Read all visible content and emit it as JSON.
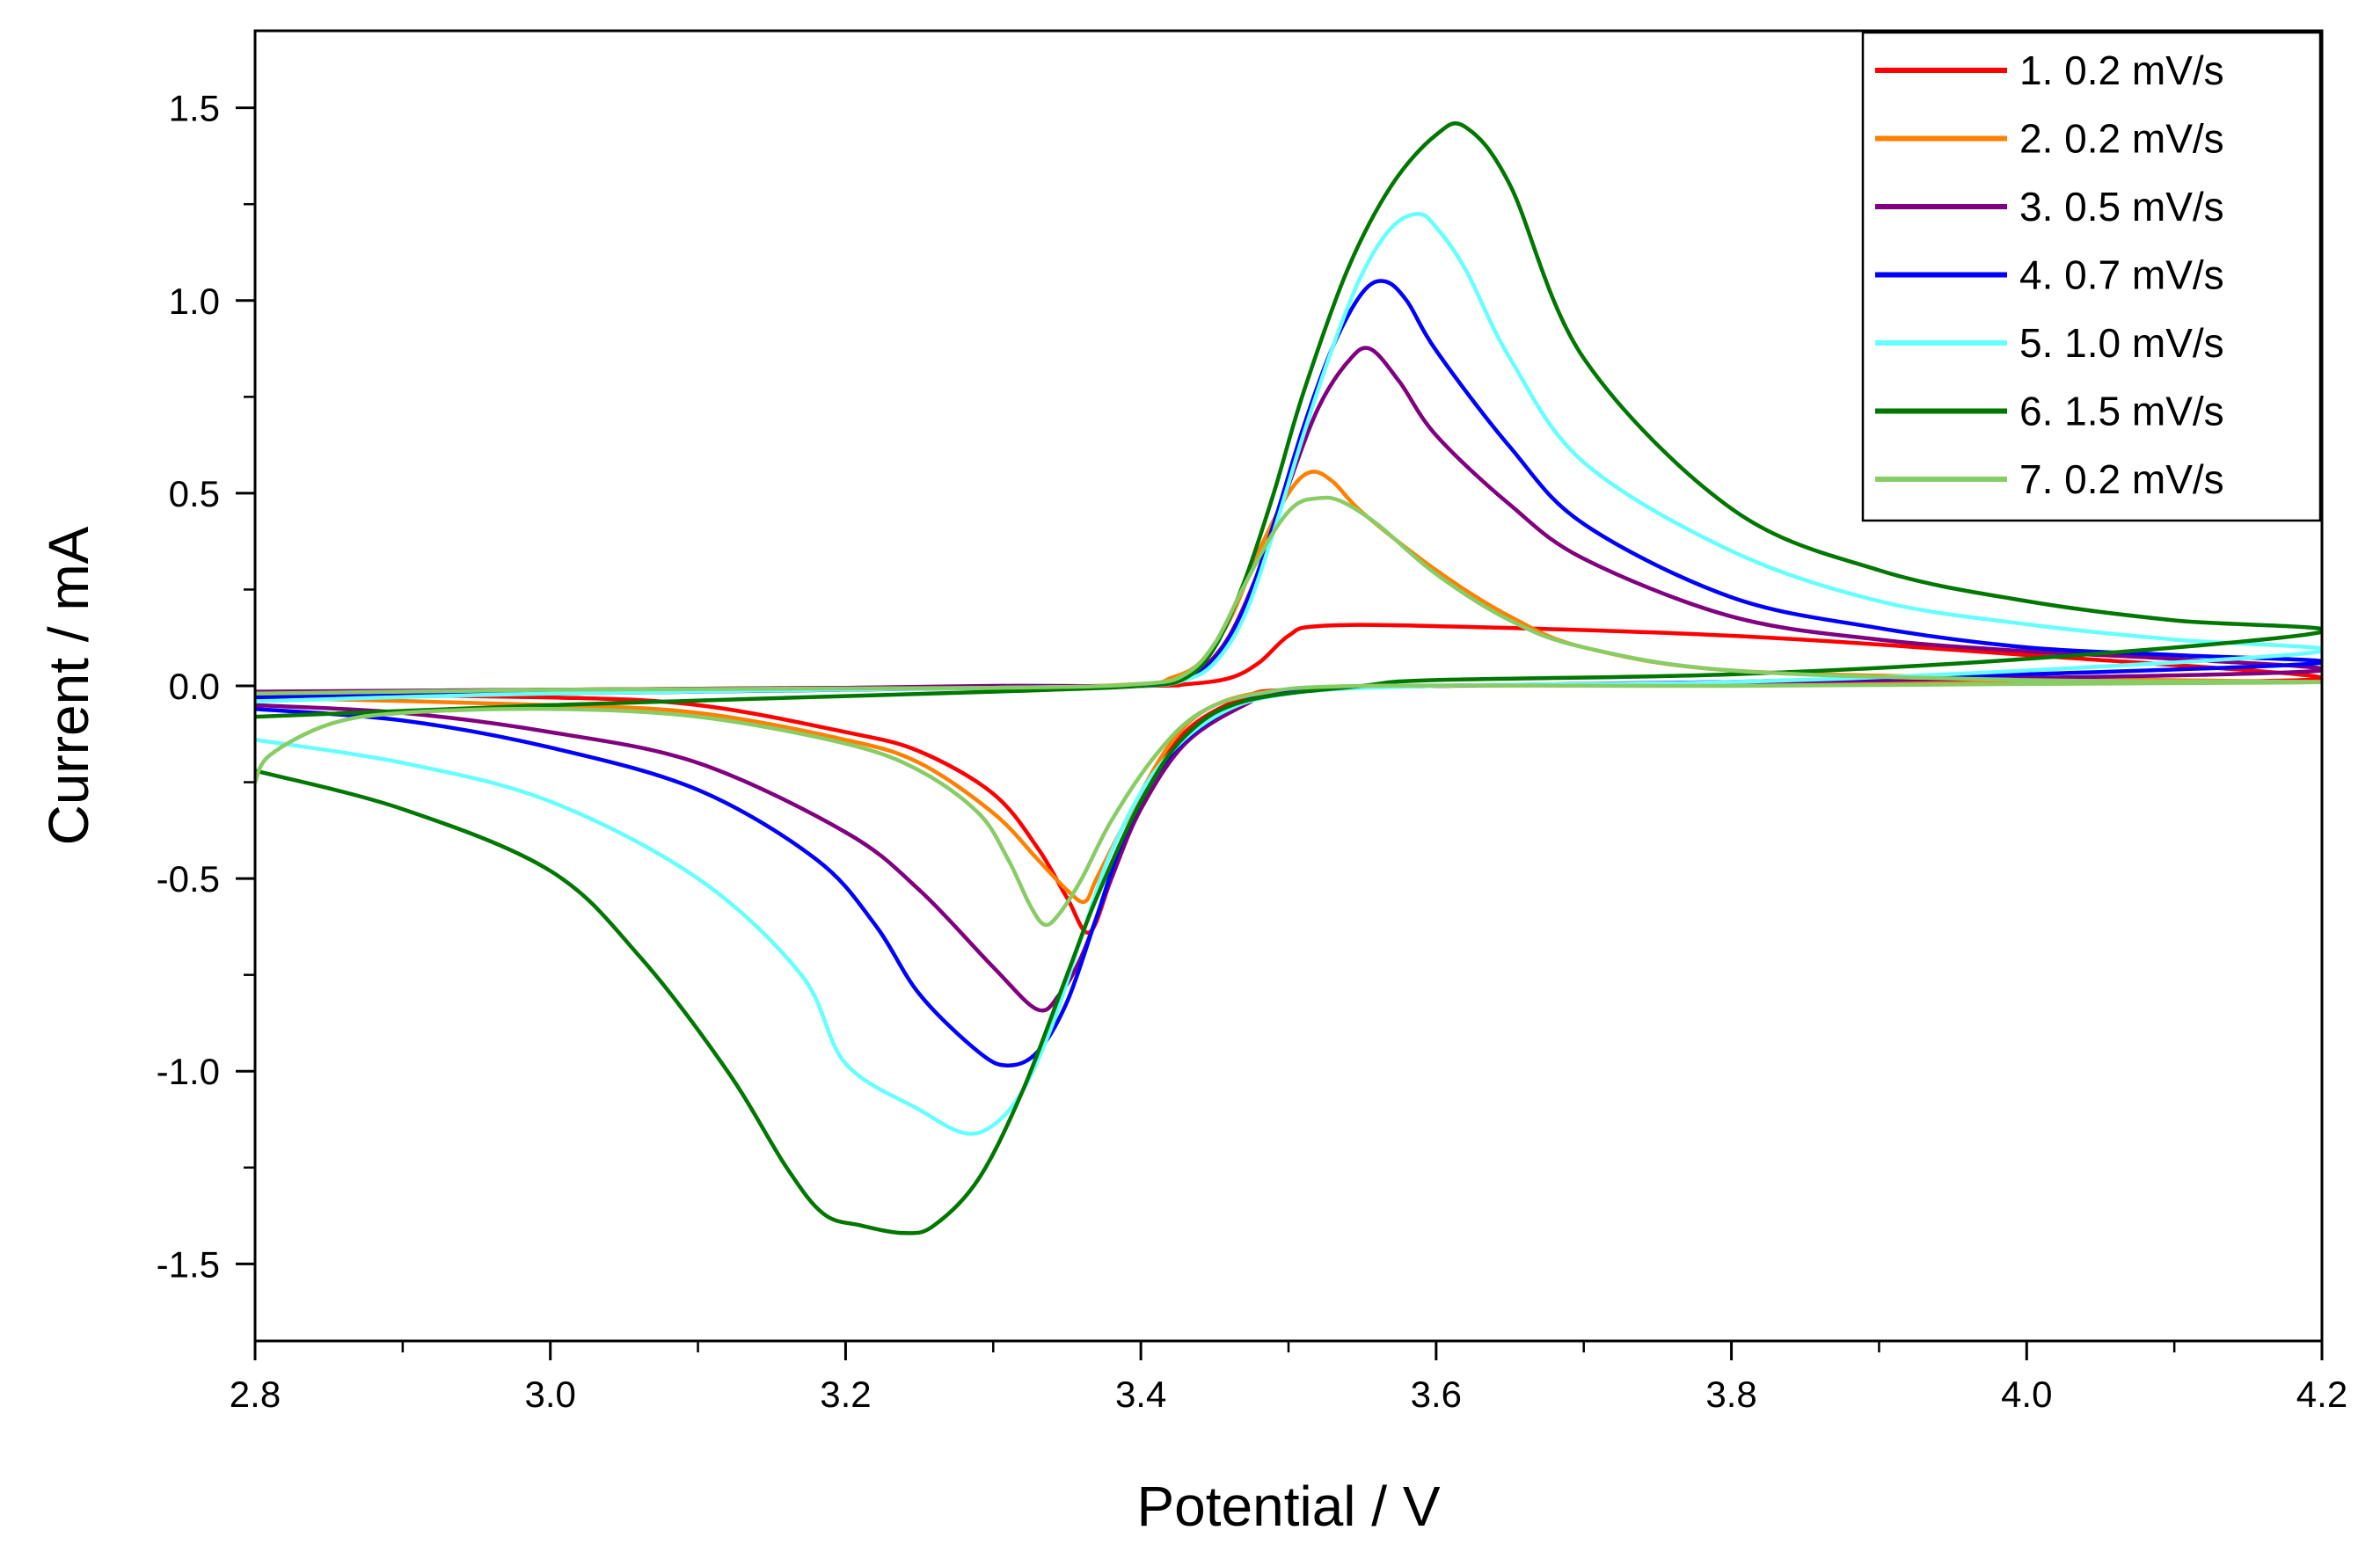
{
  "chart_data": {
    "type": "line",
    "title": "",
    "xlabel": "Potential / V",
    "ylabel": "Current / mA",
    "xlim": [
      2.8,
      4.2
    ],
    "ylim": [
      -1.7,
      1.7
    ],
    "xticks": [
      2.8,
      3.0,
      3.2,
      3.4,
      3.6,
      3.8,
      4.0,
      4.2
    ],
    "xtick_labels": [
      "2.8",
      "3.0",
      "3.2",
      "3.4",
      "3.6",
      "3.8",
      "4.0",
      "4.2"
    ],
    "yticks": [
      -1.5,
      -1.0,
      -0.5,
      0.0,
      0.5,
      1.0,
      1.5
    ],
    "ytick_labels": [
      "-1.5",
      "-1.0",
      "-0.5",
      "0.0",
      "0.5",
      "1.0",
      "1.5"
    ],
    "grid": false,
    "legend_position": "top-right",
    "series": [
      {
        "name": "1. 0.2 mV/s",
        "color": "#ff0000",
        "points": [
          [
            2.8,
            -0.02
          ],
          [
            3.0,
            -0.03
          ],
          [
            3.1,
            -0.05
          ],
          [
            3.2,
            -0.12
          ],
          [
            3.25,
            -0.17
          ],
          [
            3.3,
            -0.28
          ],
          [
            3.33,
            -0.42
          ],
          [
            3.35,
            -0.55
          ],
          [
            3.365,
            -0.64
          ],
          [
            3.38,
            -0.5
          ],
          [
            3.4,
            -0.3
          ],
          [
            3.43,
            -0.12
          ],
          [
            3.47,
            -0.03
          ],
          [
            3.5,
            -0.01
          ],
          [
            3.6,
            0.0
          ],
          [
            3.8,
            0.005
          ],
          [
            4.0,
            0.01
          ],
          [
            4.2,
            0.02
          ],
          [
            4.0,
            0.08
          ],
          [
            3.8,
            0.13
          ],
          [
            3.6,
            0.155
          ],
          [
            3.52,
            0.155
          ],
          [
            3.5,
            0.13
          ],
          [
            3.48,
            0.06
          ],
          [
            3.46,
            0.02
          ],
          [
            3.43,
            0.004
          ],
          [
            3.4,
            0.0
          ],
          [
            3.2,
            -0.005
          ],
          [
            3.0,
            -0.01
          ],
          [
            2.8,
            -0.02
          ]
        ]
      },
      {
        "name": "2. 0.2 mV/s",
        "color": "#ff8000",
        "points": [
          [
            2.8,
            -0.03
          ],
          [
            3.0,
            -0.05
          ],
          [
            3.1,
            -0.07
          ],
          [
            3.2,
            -0.14
          ],
          [
            3.25,
            -0.2
          ],
          [
            3.3,
            -0.33
          ],
          [
            3.33,
            -0.45
          ],
          [
            3.35,
            -0.53
          ],
          [
            3.362,
            -0.56
          ],
          [
            3.37,
            -0.5
          ],
          [
            3.39,
            -0.35
          ],
          [
            3.42,
            -0.15
          ],
          [
            3.45,
            -0.05
          ],
          [
            3.5,
            -0.01
          ],
          [
            3.6,
            0.0
          ],
          [
            3.8,
            0.005
          ],
          [
            4.0,
            0.01
          ],
          [
            4.2,
            0.01
          ],
          [
            4.0,
            0.02
          ],
          [
            3.8,
            0.04
          ],
          [
            3.7,
            0.1
          ],
          [
            3.65,
            0.18
          ],
          [
            3.6,
            0.3
          ],
          [
            3.55,
            0.45
          ],
          [
            3.53,
            0.53
          ],
          [
            3.515,
            0.555
          ],
          [
            3.5,
            0.5
          ],
          [
            3.48,
            0.35
          ],
          [
            3.46,
            0.17
          ],
          [
            3.44,
            0.06
          ],
          [
            3.42,
            0.02
          ],
          [
            3.4,
            0.005
          ],
          [
            3.3,
            -0.005
          ],
          [
            3.0,
            -0.015
          ],
          [
            2.8,
            -0.03
          ]
        ]
      },
      {
        "name": "3. 0.5 mV/s",
        "color": "#800080",
        "points": [
          [
            2.8,
            -0.05
          ],
          [
            2.9,
            -0.07
          ],
          [
            3.0,
            -0.12
          ],
          [
            3.1,
            -0.2
          ],
          [
            3.2,
            -0.38
          ],
          [
            3.25,
            -0.53
          ],
          [
            3.3,
            -0.73
          ],
          [
            3.33,
            -0.84
          ],
          [
            3.345,
            -0.8
          ],
          [
            3.36,
            -0.7
          ],
          [
            3.38,
            -0.5
          ],
          [
            3.4,
            -0.32
          ],
          [
            3.43,
            -0.15
          ],
          [
            3.47,
            -0.05
          ],
          [
            3.5,
            -0.015
          ],
          [
            3.6,
            0.0
          ],
          [
            3.8,
            0.01
          ],
          [
            4.0,
            0.02
          ],
          [
            4.2,
            0.04
          ],
          [
            4.1,
            0.07
          ],
          [
            4.0,
            0.09
          ],
          [
            3.9,
            0.12
          ],
          [
            3.8,
            0.18
          ],
          [
            3.7,
            0.33
          ],
          [
            3.65,
            0.47
          ],
          [
            3.6,
            0.65
          ],
          [
            3.575,
            0.79
          ],
          [
            3.555,
            0.875
          ],
          [
            3.54,
            0.84
          ],
          [
            3.52,
            0.72
          ],
          [
            3.5,
            0.52
          ],
          [
            3.48,
            0.3
          ],
          [
            3.46,
            0.13
          ],
          [
            3.44,
            0.04
          ],
          [
            3.42,
            0.01
          ],
          [
            3.4,
            0.0
          ],
          [
            3.3,
            0.0
          ],
          [
            3.2,
            -0.005
          ],
          [
            3.0,
            -0.01
          ],
          [
            2.8,
            -0.015
          ]
        ]
      },
      {
        "name": "4. 0.7 mV/s",
        "color": "#0000ff",
        "points": [
          [
            2.8,
            -0.06
          ],
          [
            2.9,
            -0.09
          ],
          [
            3.0,
            -0.16
          ],
          [
            3.1,
            -0.27
          ],
          [
            3.18,
            -0.45
          ],
          [
            3.22,
            -0.62
          ],
          [
            3.25,
            -0.8
          ],
          [
            3.29,
            -0.95
          ],
          [
            3.31,
            -0.985
          ],
          [
            3.33,
            -0.95
          ],
          [
            3.35,
            -0.82
          ],
          [
            3.37,
            -0.6
          ],
          [
            3.39,
            -0.38
          ],
          [
            3.42,
            -0.18
          ],
          [
            3.46,
            -0.06
          ],
          [
            3.5,
            -0.015
          ],
          [
            3.6,
            0.0
          ],
          [
            3.8,
            0.01
          ],
          [
            4.0,
            0.03
          ],
          [
            4.2,
            0.06
          ],
          [
            4.1,
            0.08
          ],
          [
            4.0,
            0.1
          ],
          [
            3.9,
            0.15
          ],
          [
            3.8,
            0.23
          ],
          [
            3.7,
            0.42
          ],
          [
            3.65,
            0.62
          ],
          [
            3.6,
            0.87
          ],
          [
            3.58,
            1.0
          ],
          [
            3.565,
            1.05
          ],
          [
            3.55,
            1.02
          ],
          [
            3.53,
            0.88
          ],
          [
            3.51,
            0.67
          ],
          [
            3.49,
            0.42
          ],
          [
            3.47,
            0.2
          ],
          [
            3.45,
            0.07
          ],
          [
            3.43,
            0.02
          ],
          [
            3.4,
            0.0
          ],
          [
            3.3,
            -0.005
          ],
          [
            3.0,
            -0.02
          ],
          [
            2.8,
            -0.03
          ]
        ]
      },
      {
        "name": "5. 1.0 mV/s",
        "color": "#66ffff",
        "points": [
          [
            2.8,
            -0.14
          ],
          [
            2.9,
            -0.2
          ],
          [
            3.0,
            -0.3
          ],
          [
            3.1,
            -0.5
          ],
          [
            3.17,
            -0.75
          ],
          [
            3.2,
            -0.98
          ],
          [
            3.25,
            -1.1
          ],
          [
            3.28,
            -1.16
          ],
          [
            3.3,
            -1.14
          ],
          [
            3.32,
            -1.05
          ],
          [
            3.34,
            -0.88
          ],
          [
            3.36,
            -0.65
          ],
          [
            3.38,
            -0.43
          ],
          [
            3.41,
            -0.22
          ],
          [
            3.45,
            -0.08
          ],
          [
            3.5,
            -0.02
          ],
          [
            3.6,
            0.0
          ],
          [
            3.8,
            0.01
          ],
          [
            4.0,
            0.04
          ],
          [
            4.2,
            0.09
          ],
          [
            4.1,
            0.12
          ],
          [
            4.0,
            0.16
          ],
          [
            3.9,
            0.22
          ],
          [
            3.8,
            0.35
          ],
          [
            3.7,
            0.58
          ],
          [
            3.65,
            0.85
          ],
          [
            3.62,
            1.08
          ],
          [
            3.6,
            1.19
          ],
          [
            3.588,
            1.225
          ],
          [
            3.57,
            1.19
          ],
          [
            3.55,
            1.07
          ],
          [
            3.53,
            0.88
          ],
          [
            3.51,
            0.65
          ],
          [
            3.49,
            0.4
          ],
          [
            3.47,
            0.18
          ],
          [
            3.45,
            0.06
          ],
          [
            3.43,
            0.015
          ],
          [
            3.4,
            0.0
          ],
          [
            3.3,
            -0.005
          ],
          [
            3.0,
            -0.02
          ],
          [
            2.8,
            -0.04
          ]
        ]
      },
      {
        "name": "6. 1.5 mV/s",
        "color": "#007700",
        "points": [
          [
            2.8,
            -0.22
          ],
          [
            2.9,
            -0.32
          ],
          [
            3.0,
            -0.48
          ],
          [
            3.06,
            -0.7
          ],
          [
            3.12,
            -1.0
          ],
          [
            3.16,
            -1.25
          ],
          [
            3.185,
            -1.37
          ],
          [
            3.21,
            -1.4
          ],
          [
            3.24,
            -1.42
          ],
          [
            3.26,
            -1.4
          ],
          [
            3.29,
            -1.28
          ],
          [
            3.32,
            -1.05
          ],
          [
            3.35,
            -0.75
          ],
          [
            3.37,
            -0.55
          ],
          [
            3.4,
            -0.3
          ],
          [
            3.43,
            -0.13
          ],
          [
            3.47,
            -0.04
          ],
          [
            3.55,
            0.0
          ],
          [
            3.6,
            0.015
          ],
          [
            3.8,
            0.03
          ],
          [
            4.0,
            0.07
          ],
          [
            4.2,
            0.14
          ],
          [
            4.1,
            0.17
          ],
          [
            4.0,
            0.22
          ],
          [
            3.9,
            0.3
          ],
          [
            3.8,
            0.46
          ],
          [
            3.7,
            0.85
          ],
          [
            3.65,
            1.3
          ],
          [
            3.62,
            1.45
          ],
          [
            3.6,
            1.43
          ],
          [
            3.57,
            1.3
          ],
          [
            3.54,
            1.08
          ],
          [
            3.51,
            0.76
          ],
          [
            3.49,
            0.5
          ],
          [
            3.47,
            0.27
          ],
          [
            3.45,
            0.1
          ],
          [
            3.43,
            0.02
          ],
          [
            3.4,
            0.0
          ],
          [
            3.3,
            -0.015
          ],
          [
            3.0,
            -0.05
          ],
          [
            2.8,
            -0.08
          ]
        ]
      },
      {
        "name": "7. 0.2 mV/s",
        "color": "#88cc66",
        "points": [
          [
            2.8,
            -0.25
          ],
          [
            2.81,
            -0.18
          ],
          [
            2.85,
            -0.1
          ],
          [
            2.9,
            -0.07
          ],
          [
            3.0,
            -0.06
          ],
          [
            3.1,
            -0.08
          ],
          [
            3.2,
            -0.15
          ],
          [
            3.25,
            -0.22
          ],
          [
            3.29,
            -0.33
          ],
          [
            3.31,
            -0.45
          ],
          [
            3.325,
            -0.57
          ],
          [
            3.335,
            -0.62
          ],
          [
            3.345,
            -0.59
          ],
          [
            3.36,
            -0.5
          ],
          [
            3.38,
            -0.35
          ],
          [
            3.41,
            -0.18
          ],
          [
            3.44,
            -0.07
          ],
          [
            3.48,
            -0.02
          ],
          [
            3.55,
            0.0
          ],
          [
            3.8,
            0.0
          ],
          [
            4.0,
            0.005
          ],
          [
            4.2,
            0.01
          ],
          [
            4.0,
            0.015
          ],
          [
            3.8,
            0.04
          ],
          [
            3.7,
            0.1
          ],
          [
            3.65,
            0.17
          ],
          [
            3.6,
            0.29
          ],
          [
            3.56,
            0.42
          ],
          [
            3.535,
            0.48
          ],
          [
            3.52,
            0.487
          ],
          [
            3.505,
            0.47
          ],
          [
            3.49,
            0.4
          ],
          [
            3.47,
            0.26
          ],
          [
            3.45,
            0.11
          ],
          [
            3.43,
            0.03
          ],
          [
            3.4,
            0.005
          ],
          [
            3.3,
            -0.005
          ],
          [
            3.0,
            -0.01
          ],
          [
            2.8,
            -0.02
          ]
        ]
      }
    ]
  }
}
